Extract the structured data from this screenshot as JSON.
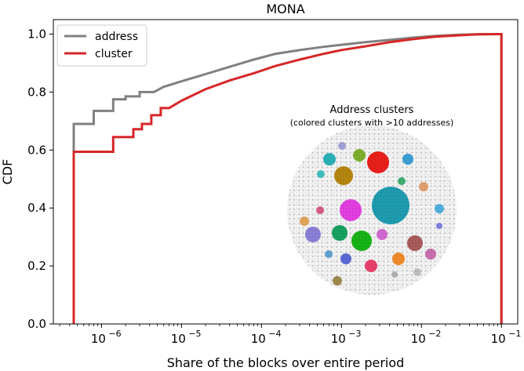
{
  "chart_data": {
    "type": "line",
    "subtype": "step-cdf",
    "title": "MONA",
    "xlabel": "Share of the blocks over entire period",
    "ylabel": "CDF",
    "xscale": "log",
    "xlim": [
      2.5e-07,
      0.16
    ],
    "ylim": [
      0.0,
      1.05
    ],
    "xticks": [
      {
        "value": 1e-06,
        "base": "10",
        "exp": "−6"
      },
      {
        "value": 1e-05,
        "base": "10",
        "exp": "−5"
      },
      {
        "value": 0.0001,
        "base": "10",
        "exp": "−4"
      },
      {
        "value": 0.001,
        "base": "10",
        "exp": "−3"
      },
      {
        "value": 0.01,
        "base": "10",
        "exp": "−2"
      },
      {
        "value": 0.1,
        "base": "10",
        "exp": "−1"
      }
    ],
    "yticks": [
      {
        "value": 0.0,
        "label": "0.0"
      },
      {
        "value": 0.2,
        "label": "0.2"
      },
      {
        "value": 0.4,
        "label": "0.4"
      },
      {
        "value": 0.6,
        "label": "0.6"
      },
      {
        "value": 0.8,
        "label": "0.8"
      },
      {
        "value": 1.0,
        "label": "1.0"
      }
    ],
    "legend_position": "top-left",
    "series": [
      {
        "name": "address",
        "color": "#808080",
        "points": [
          [
            4.5e-07,
            0.0
          ],
          [
            4.5e-07,
            0.69
          ],
          [
            8e-07,
            0.69
          ],
          [
            8e-07,
            0.735
          ],
          [
            1.4e-06,
            0.735
          ],
          [
            1.4e-06,
            0.775
          ],
          [
            2e-06,
            0.775
          ],
          [
            2e-06,
            0.785
          ],
          [
            3e-06,
            0.785
          ],
          [
            3e-06,
            0.8
          ],
          [
            4.5e-06,
            0.8
          ],
          [
            6e-06,
            0.818
          ],
          [
            1e-05,
            0.837
          ],
          [
            2e-05,
            0.862
          ],
          [
            4e-05,
            0.887
          ],
          [
            8e-05,
            0.912
          ],
          [
            0.00015,
            0.932
          ],
          [
            0.0003,
            0.945
          ],
          [
            0.0006,
            0.956
          ],
          [
            0.001,
            0.963
          ],
          [
            0.002,
            0.972
          ],
          [
            0.004,
            0.98
          ],
          [
            0.008,
            0.988
          ],
          [
            0.015,
            0.994
          ],
          [
            0.03,
            0.998
          ],
          [
            0.05,
            0.999
          ],
          [
            0.1,
            1.0
          ],
          [
            0.1,
            0.0
          ]
        ]
      },
      {
        "name": "cluster",
        "color": "#d62728",
        "points": [
          [
            4.5e-07,
            0.0
          ],
          [
            4.5e-07,
            0.594
          ],
          [
            1.4e-06,
            0.594
          ],
          [
            1.4e-06,
            0.645
          ],
          [
            2.5e-06,
            0.645
          ],
          [
            2.5e-06,
            0.672
          ],
          [
            3.2e-06,
            0.672
          ],
          [
            3.2e-06,
            0.69
          ],
          [
            4.2e-06,
            0.69
          ],
          [
            4.2e-06,
            0.72
          ],
          [
            5.5e-06,
            0.72
          ],
          [
            5.5e-06,
            0.745
          ],
          [
            7e-06,
            0.745
          ],
          [
            1e-05,
            0.77
          ],
          [
            2e-05,
            0.81
          ],
          [
            4e-05,
            0.84
          ],
          [
            8e-05,
            0.865
          ],
          [
            0.00015,
            0.89
          ],
          [
            0.0003,
            0.912
          ],
          [
            0.0006,
            0.932
          ],
          [
            0.001,
            0.945
          ],
          [
            0.002,
            0.958
          ],
          [
            0.004,
            0.972
          ],
          [
            0.008,
            0.983
          ],
          [
            0.015,
            0.991
          ],
          [
            0.03,
            0.996
          ],
          [
            0.05,
            0.999
          ],
          [
            0.1,
            1.0
          ],
          [
            0.1,
            0.0
          ]
        ]
      }
    ],
    "inset": {
      "title": "Address clusters",
      "subtitle": "(colored clusters with >10 addresses)"
    }
  }
}
